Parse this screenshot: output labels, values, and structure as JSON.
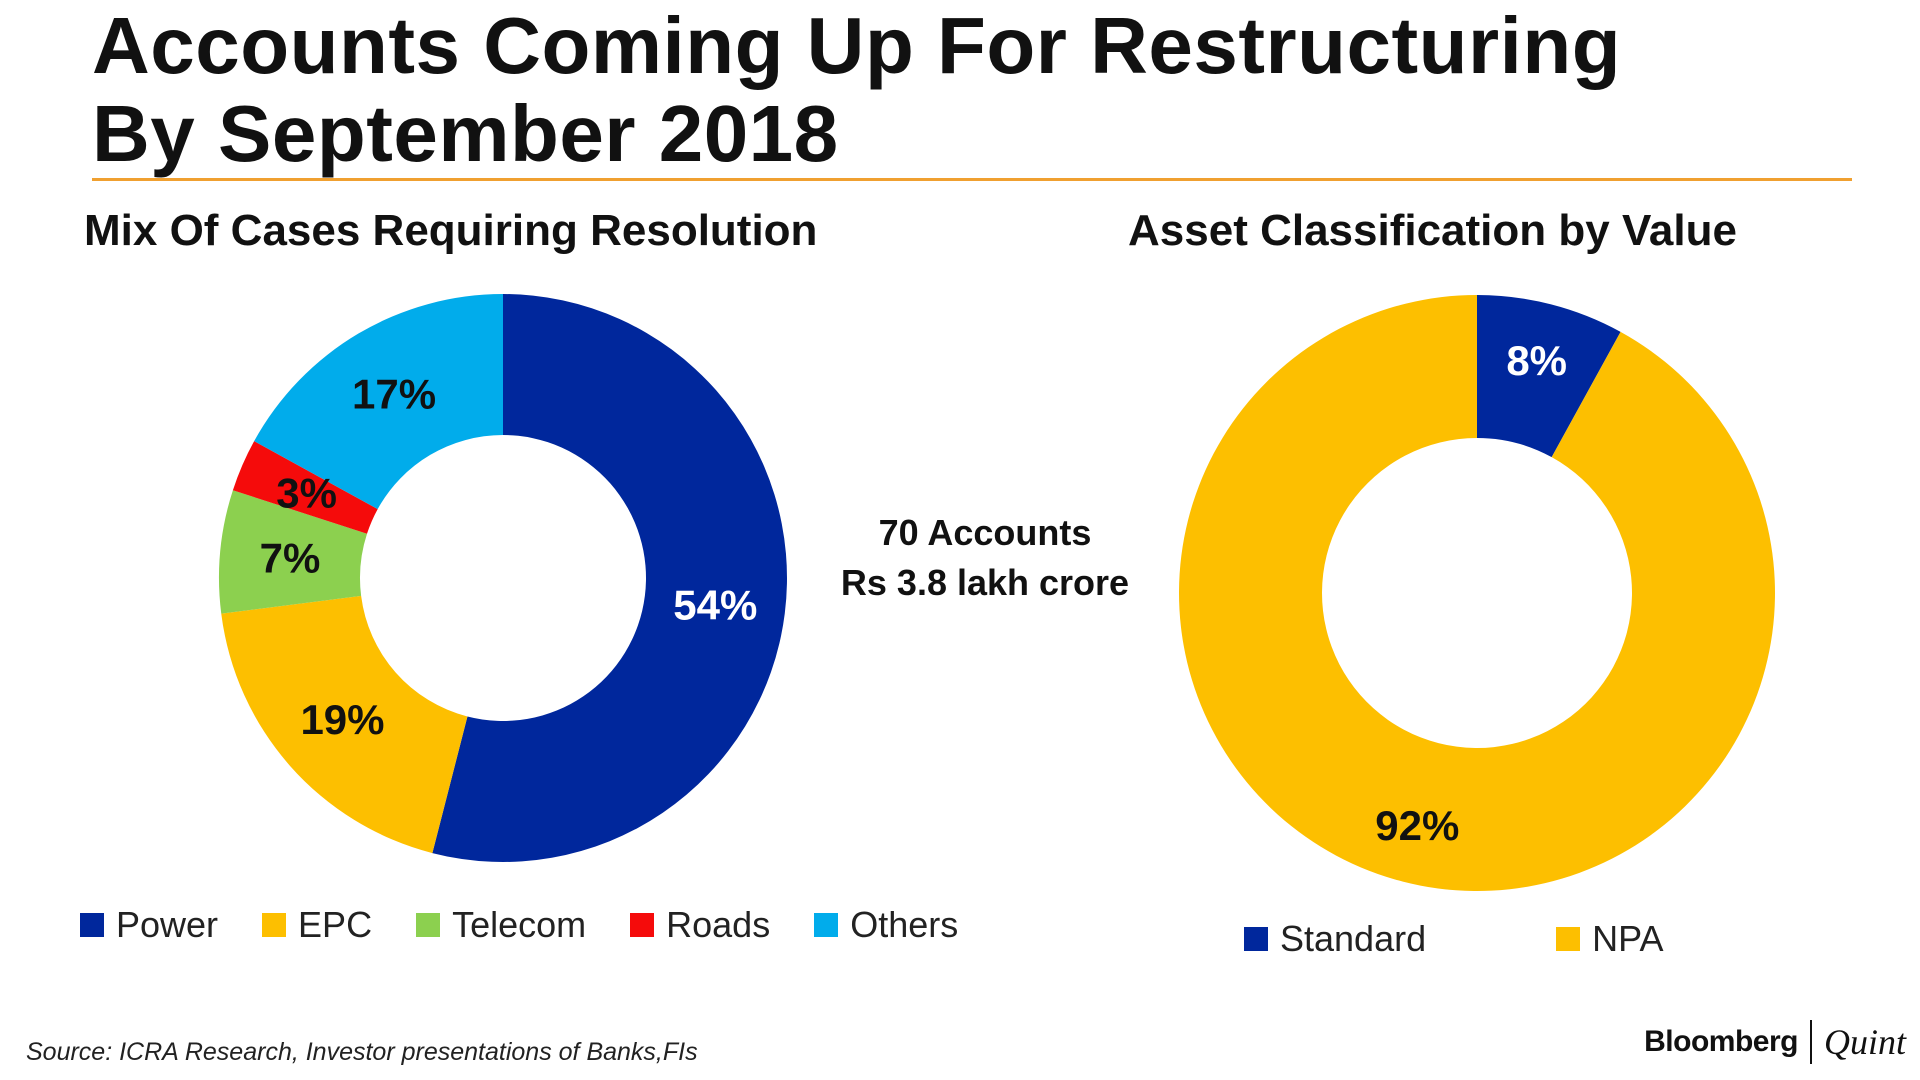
{
  "header": {
    "title_line1": "Accounts Coming Up For Restructuring",
    "title_line2": "By September 2018",
    "accent_color": "#F0A030"
  },
  "center_note": {
    "line1": "70 Accounts",
    "line2": "Rs 3.8 lakh crore"
  },
  "chart_data": [
    {
      "type": "pie",
      "variant": "donut",
      "title": "Mix Of Cases Requiring Resolution",
      "categories": [
        "Power",
        "EPC",
        "Telecom",
        "Roads",
        "Others"
      ],
      "values": [
        54,
        19,
        7,
        3,
        17
      ],
      "value_labels": [
        "54%",
        "19%",
        "7%",
        "3%",
        "17%"
      ],
      "colors": [
        "#00279C",
        "#FDBF00",
        "#8CD04F",
        "#F50B0B",
        "#01ACEB"
      ],
      "label_colors": [
        "#FFFFFF",
        "#111111",
        "#111111",
        "#111111",
        "#111111"
      ],
      "start_angle_deg": 0,
      "direction": "clockwise",
      "legend_position": "bottom"
    },
    {
      "type": "pie",
      "variant": "donut",
      "title": "Asset Classification by Value",
      "categories": [
        "Standard",
        "NPA"
      ],
      "values": [
        8,
        92
      ],
      "value_labels": [
        "8%",
        "92%"
      ],
      "colors": [
        "#00279C",
        "#FDBF00"
      ],
      "label_colors": [
        "#FFFFFF",
        "#111111"
      ],
      "start_angle_deg": 0,
      "direction": "clockwise",
      "legend_position": "bottom"
    }
  ],
  "footer": {
    "source": "Source: ICRA Research, Investor presentations of Banks,FIs",
    "brand_left": "Bloomberg",
    "brand_right": "Quint"
  }
}
